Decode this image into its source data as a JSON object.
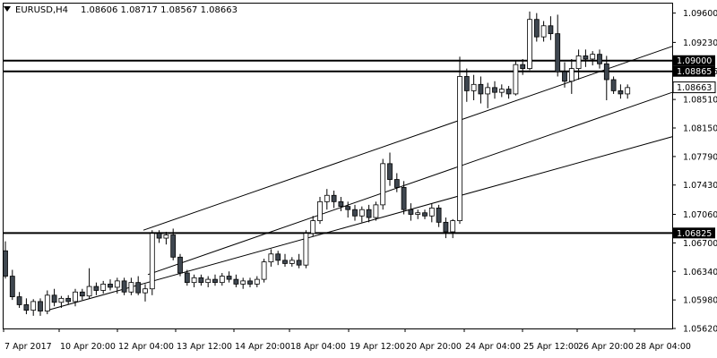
{
  "header": {
    "symbol": "EURUSD,H4",
    "ohlc": "1.08606 1.08717 1.08567 1.08663"
  },
  "colors": {
    "background": "#ffffff",
    "foreground": "#000000",
    "bear_body": "#3f4750",
    "bull_body": "#ffffff"
  },
  "chart_data": {
    "type": "candlestick",
    "title": "EURUSD,H4",
    "grid": false,
    "y_axis_side": "right",
    "ylim": [
      1.0562,
      1.0972
    ],
    "y_ticks": [
      "1.09600",
      "1.09230",
      "1.08865",
      "1.08510",
      "1.08150",
      "1.07790",
      "1.07430",
      "1.07060",
      "1.06700",
      "1.06340",
      "1.05980",
      "1.05620"
    ],
    "x_ticks": [
      "7 Apr 2017",
      "10 Apr 20:00",
      "12 Apr 04:00",
      "13 Apr 12:00",
      "14 Apr 20:00",
      "18 Apr 04:00",
      "19 Apr 12:00",
      "20 Apr 20:00",
      "24 Apr 04:00",
      "25 Apr 12:00",
      "26 Apr 20:00",
      "28 Apr 04:00"
    ],
    "candles": [
      {
        "o": 1.066,
        "h": 1.0672,
        "l": 1.0625,
        "c": 1.0628
      },
      {
        "o": 1.0628,
        "h": 1.0636,
        "l": 1.0598,
        "c": 1.0602
      },
      {
        "o": 1.0602,
        "h": 1.0608,
        "l": 1.0588,
        "c": 1.0592
      },
      {
        "o": 1.0592,
        "h": 1.06,
        "l": 1.058,
        "c": 1.0585
      },
      {
        "o": 1.0585,
        "h": 1.0599,
        "l": 1.0578,
        "c": 1.0596
      },
      {
        "o": 1.0596,
        "h": 1.06,
        "l": 1.0578,
        "c": 1.0584
      },
      {
        "o": 1.0584,
        "h": 1.061,
        "l": 1.058,
        "c": 1.0604
      },
      {
        "o": 1.0604,
        "h": 1.0612,
        "l": 1.059,
        "c": 1.0595
      },
      {
        "o": 1.0595,
        "h": 1.0603,
        "l": 1.0588,
        "c": 1.06
      },
      {
        "o": 1.06,
        "h": 1.0604,
        "l": 1.0592,
        "c": 1.0596
      },
      {
        "o": 1.0596,
        "h": 1.0612,
        "l": 1.059,
        "c": 1.0608
      },
      {
        "o": 1.0608,
        "h": 1.0612,
        "l": 1.0598,
        "c": 1.0603
      },
      {
        "o": 1.0603,
        "h": 1.0638,
        "l": 1.06,
        "c": 1.0615
      },
      {
        "o": 1.0615,
        "h": 1.062,
        "l": 1.0604,
        "c": 1.061
      },
      {
        "o": 1.061,
        "h": 1.0622,
        "l": 1.0606,
        "c": 1.0618
      },
      {
        "o": 1.0618,
        "h": 1.0624,
        "l": 1.061,
        "c": 1.0614
      },
      {
        "o": 1.0614,
        "h": 1.0626,
        "l": 1.0606,
        "c": 1.0622
      },
      {
        "o": 1.0622,
        "h": 1.0626,
        "l": 1.0604,
        "c": 1.0608
      },
      {
        "o": 1.0608,
        "h": 1.0626,
        "l": 1.0604,
        "c": 1.062
      },
      {
        "o": 1.062,
        "h": 1.0628,
        "l": 1.0604,
        "c": 1.0607
      },
      {
        "o": 1.0607,
        "h": 1.0618,
        "l": 1.0596,
        "c": 1.0612
      },
      {
        "o": 1.0612,
        "h": 1.0686,
        "l": 1.0604,
        "c": 1.0682
      },
      {
        "o": 1.0682,
        "h": 1.0686,
        "l": 1.067,
        "c": 1.0676
      },
      {
        "o": 1.0676,
        "h": 1.0684,
        "l": 1.0668,
        "c": 1.068
      },
      {
        "o": 1.068,
        "h": 1.0688,
        "l": 1.0648,
        "c": 1.0652
      },
      {
        "o": 1.0652,
        "h": 1.0656,
        "l": 1.0628,
        "c": 1.0632
      },
      {
        "o": 1.0632,
        "h": 1.0636,
        "l": 1.0616,
        "c": 1.062
      },
      {
        "o": 1.062,
        "h": 1.063,
        "l": 1.0614,
        "c": 1.0626
      },
      {
        "o": 1.0626,
        "h": 1.063,
        "l": 1.0616,
        "c": 1.062
      },
      {
        "o": 1.062,
        "h": 1.0628,
        "l": 1.0614,
        "c": 1.0624
      },
      {
        "o": 1.0624,
        "h": 1.063,
        "l": 1.0616,
        "c": 1.062
      },
      {
        "o": 1.062,
        "h": 1.0632,
        "l": 1.0616,
        "c": 1.0628
      },
      {
        "o": 1.0628,
        "h": 1.0634,
        "l": 1.062,
        "c": 1.0624
      },
      {
        "o": 1.0624,
        "h": 1.063,
        "l": 1.0614,
        "c": 1.0618
      },
      {
        "o": 1.0618,
        "h": 1.0626,
        "l": 1.0612,
        "c": 1.0622
      },
      {
        "o": 1.0622,
        "h": 1.0626,
        "l": 1.0614,
        "c": 1.0618
      },
      {
        "o": 1.0618,
        "h": 1.0628,
        "l": 1.0614,
        "c": 1.0624
      },
      {
        "o": 1.0624,
        "h": 1.065,
        "l": 1.062,
        "c": 1.0646
      },
      {
        "o": 1.0646,
        "h": 1.0662,
        "l": 1.064,
        "c": 1.0656
      },
      {
        "o": 1.0656,
        "h": 1.066,
        "l": 1.0642,
        "c": 1.0648
      },
      {
        "o": 1.0648,
        "h": 1.0656,
        "l": 1.064,
        "c": 1.0644
      },
      {
        "o": 1.0644,
        "h": 1.0652,
        "l": 1.064,
        "c": 1.0648
      },
      {
        "o": 1.0648,
        "h": 1.0656,
        "l": 1.0638,
        "c": 1.0642
      },
      {
        "o": 1.0642,
        "h": 1.0686,
        "l": 1.0638,
        "c": 1.0682
      },
      {
        "o": 1.0682,
        "h": 1.0704,
        "l": 1.0678,
        "c": 1.0698
      },
      {
        "o": 1.0698,
        "h": 1.0728,
        "l": 1.0694,
        "c": 1.0722
      },
      {
        "o": 1.0722,
        "h": 1.0738,
        "l": 1.0712,
        "c": 1.073
      },
      {
        "o": 1.073,
        "h": 1.0736,
        "l": 1.0714,
        "c": 1.0722
      },
      {
        "o": 1.0722,
        "h": 1.0728,
        "l": 1.071,
        "c": 1.0716
      },
      {
        "o": 1.0716,
        "h": 1.0722,
        "l": 1.0702,
        "c": 1.0712
      },
      {
        "o": 1.0712,
        "h": 1.0718,
        "l": 1.0698,
        "c": 1.0704
      },
      {
        "o": 1.0704,
        "h": 1.0716,
        "l": 1.0696,
        "c": 1.0712
      },
      {
        "o": 1.0712,
        "h": 1.0718,
        "l": 1.0696,
        "c": 1.0702
      },
      {
        "o": 1.0702,
        "h": 1.0722,
        "l": 1.0698,
        "c": 1.0718
      },
      {
        "o": 1.0718,
        "h": 1.0776,
        "l": 1.0712,
        "c": 1.077
      },
      {
        "o": 1.077,
        "h": 1.0784,
        "l": 1.0742,
        "c": 1.075
      },
      {
        "o": 1.075,
        "h": 1.0758,
        "l": 1.0734,
        "c": 1.074
      },
      {
        "o": 1.074,
        "h": 1.0748,
        "l": 1.0706,
        "c": 1.0712
      },
      {
        "o": 1.0712,
        "h": 1.072,
        "l": 1.0698,
        "c": 1.0706
      },
      {
        "o": 1.0706,
        "h": 1.0712,
        "l": 1.07,
        "c": 1.0708
      },
      {
        "o": 1.0708,
        "h": 1.0712,
        "l": 1.07,
        "c": 1.0704
      },
      {
        "o": 1.0704,
        "h": 1.072,
        "l": 1.0696,
        "c": 1.0714
      },
      {
        "o": 1.0714,
        "h": 1.0718,
        "l": 1.069,
        "c": 1.0696
      },
      {
        "o": 1.0696,
        "h": 1.0702,
        "l": 1.0676,
        "c": 1.0684
      },
      {
        "o": 1.0684,
        "h": 1.07,
        "l": 1.0676,
        "c": 1.0698
      },
      {
        "o": 1.0698,
        "h": 1.0905,
        "l": 1.0694,
        "c": 1.088
      },
      {
        "o": 1.088,
        "h": 1.089,
        "l": 1.0848,
        "c": 1.0862
      },
      {
        "o": 1.0862,
        "h": 1.0882,
        "l": 1.085,
        "c": 1.087
      },
      {
        "o": 1.087,
        "h": 1.088,
        "l": 1.0846,
        "c": 1.0858
      },
      {
        "o": 1.0858,
        "h": 1.0872,
        "l": 1.084,
        "c": 1.0866
      },
      {
        "o": 1.0866,
        "h": 1.0874,
        "l": 1.0852,
        "c": 1.086
      },
      {
        "o": 1.086,
        "h": 1.087,
        "l": 1.0854,
        "c": 1.0864
      },
      {
        "o": 1.0864,
        "h": 1.0868,
        "l": 1.0852,
        "c": 1.0858
      },
      {
        "o": 1.0858,
        "h": 1.09,
        "l": 1.0856,
        "c": 1.0895
      },
      {
        "o": 1.0895,
        "h": 1.0902,
        "l": 1.0882,
        "c": 1.089
      },
      {
        "o": 1.089,
        "h": 1.0962,
        "l": 1.0888,
        "c": 1.0952
      },
      {
        "o": 1.0952,
        "h": 1.096,
        "l": 1.0924,
        "c": 1.093
      },
      {
        "o": 1.093,
        "h": 1.095,
        "l": 1.0924,
        "c": 1.0944
      },
      {
        "o": 1.0944,
        "h": 1.0956,
        "l": 1.0926,
        "c": 1.0934
      },
      {
        "o": 1.0934,
        "h": 1.0958,
        "l": 1.088,
        "c": 1.0886
      },
      {
        "o": 1.0886,
        "h": 1.0898,
        "l": 1.0866,
        "c": 1.0874
      },
      {
        "o": 1.0874,
        "h": 1.0902,
        "l": 1.0858,
        "c": 1.089
      },
      {
        "o": 1.089,
        "h": 1.0914,
        "l": 1.0876,
        "c": 1.0906
      },
      {
        "o": 1.0906,
        "h": 1.0914,
        "l": 1.0892,
        "c": 1.0902
      },
      {
        "o": 1.0902,
        "h": 1.0912,
        "l": 1.0894,
        "c": 1.0908
      },
      {
        "o": 1.0908,
        "h": 1.0914,
        "l": 1.089,
        "c": 1.0896
      },
      {
        "o": 1.0896,
        "h": 1.0906,
        "l": 1.085,
        "c": 1.0876
      },
      {
        "o": 1.0876,
        "h": 1.088,
        "l": 1.0858,
        "c": 1.0862
      },
      {
        "o": 1.0862,
        "h": 1.087,
        "l": 1.0852,
        "c": 1.0858
      },
      {
        "o": 1.0858,
        "h": 1.087,
        "l": 1.0852,
        "c": 1.0866
      }
    ],
    "horizontal_levels": [
      {
        "value": 1.09,
        "label": "1.09000",
        "style": "tag"
      },
      {
        "value": 1.08865,
        "label": "1.08865",
        "style": "tag"
      },
      {
        "value": 1.06825,
        "label": "1.06825",
        "style": "tag"
      }
    ],
    "price_marker": {
      "value": 1.08663,
      "label": "1.08663"
    },
    "channel_lines": [
      {
        "from": {
          "x": "7 Apr 2017",
          "y": 1.0584
        },
        "to": {
          "x": "28 Apr 04:00",
          "y": 1.0804
        }
      },
      {
        "from": {
          "x": "12 Apr 04:00",
          "y": 1.063
        },
        "to": {
          "x": "28 Apr 04:00",
          "y": 1.086
        }
      },
      {
        "from": {
          "x": "12 Apr 04:00",
          "y": 1.0686
        },
        "to": {
          "x": "28 Apr 04:00",
          "y": 1.0918
        }
      }
    ]
  }
}
